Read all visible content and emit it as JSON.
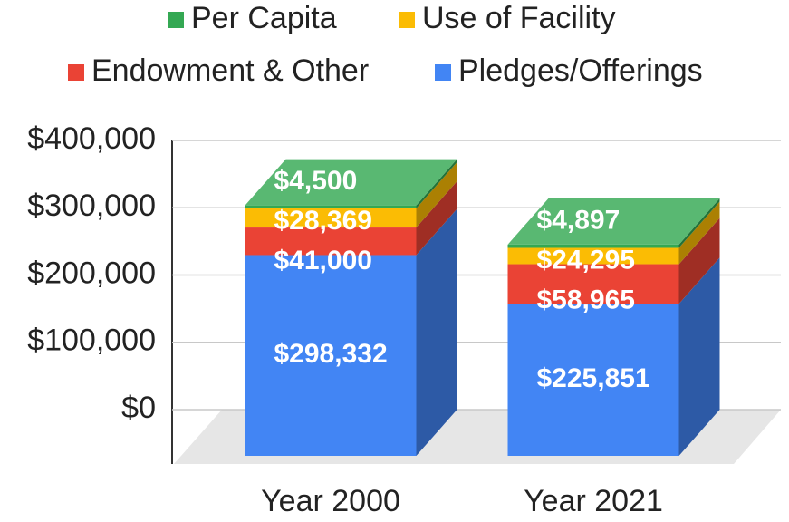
{
  "chart_data": {
    "type": "bar3d_stacked",
    "categories": [
      "Year 2000",
      "Year 2021"
    ],
    "series": [
      {
        "name": "Pledges/Offerings",
        "color": "#4285f4",
        "values": [
          298332,
          225851
        ],
        "value_labels": [
          "$298,332",
          "$225,851"
        ]
      },
      {
        "name": "Endowment & Other",
        "color": "#ea4335",
        "values": [
          41000,
          58965
        ],
        "value_labels": [
          "$41,000",
          "$58,965"
        ]
      },
      {
        "name": "Use of Facility",
        "color": "#fbbc04",
        "values": [
          28369,
          24295
        ],
        "value_labels": [
          "$28,369",
          "$24,295"
        ]
      },
      {
        "name": "Per Capita",
        "color": "#34a853",
        "values": [
          4500,
          4897
        ],
        "value_labels": [
          "$4,500",
          "$4,897"
        ]
      }
    ],
    "ylim": [
      0,
      400000
    ],
    "yticks": [
      {
        "value": 0,
        "label": "$0"
      },
      {
        "value": 100000,
        "label": "$100,000"
      },
      {
        "value": 200000,
        "label": "$200,000"
      },
      {
        "value": 300000,
        "label": "$300,000"
      },
      {
        "value": 400000,
        "label": "$400,000"
      }
    ],
    "grid": true
  }
}
